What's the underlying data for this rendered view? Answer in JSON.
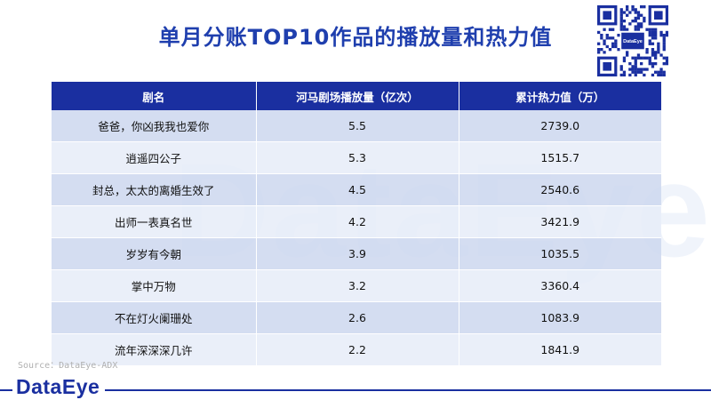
{
  "title": "单月分账TOP10作品的播放量和热力值",
  "qr": {
    "logo_text": "DataEye"
  },
  "watermark": "DataEye",
  "table": {
    "headers": [
      "剧名",
      "河马剧场播放量（亿次）",
      "累计热力值（万）"
    ],
    "rows": [
      [
        "爸爸，你凶我我也爱你",
        "5.5",
        "2739.0"
      ],
      [
        "逍遥四公子",
        "5.3",
        "1515.7"
      ],
      [
        "封总，太太的离婚生效了",
        "4.5",
        "2540.6"
      ],
      [
        "出师一表真名世",
        "4.2",
        "3421.9"
      ],
      [
        "岁岁有今朝",
        "3.9",
        "1035.5"
      ],
      [
        "掌中万物",
        "3.2",
        "3360.4"
      ],
      [
        "不在灯火阑珊处",
        "2.6",
        "1083.9"
      ],
      [
        "流年深深深几许",
        "2.2",
        "1841.9"
      ]
    ]
  },
  "source": "Source：DataEye-ADX",
  "footer": {
    "logo": "DataEye"
  },
  "colors": {
    "primary": "#1a2fa0",
    "title": "#1f3fae"
  }
}
